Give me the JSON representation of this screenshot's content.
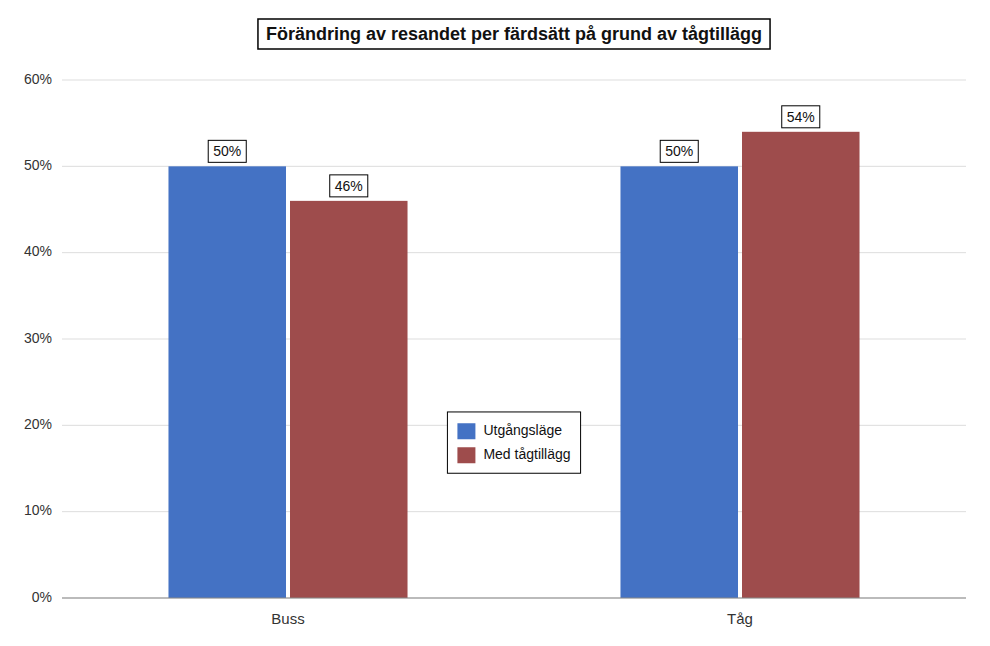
{
  "chart_data": {
    "type": "bar",
    "title": "Förändring av resandet per färdsätt på grund av tågtillägg",
    "categories": [
      "Buss",
      "Tåg"
    ],
    "series": [
      {
        "name": "Utgångsläge",
        "color": "#4472C4",
        "values": [
          0.5,
          0.5
        ],
        "value_labels": [
          "50%",
          "50%"
        ]
      },
      {
        "name": "Med tågtillägg",
        "color": "#9E4C4C",
        "values": [
          0.46,
          0.54
        ],
        "value_labels": [
          "46%",
          "54%"
        ]
      }
    ],
    "ylim": [
      0,
      0.6
    ],
    "yticks": [
      {
        "value": 0,
        "label": "0%"
      },
      {
        "value": 0.1,
        "label": "10%"
      },
      {
        "value": 0.2,
        "label": "20%"
      },
      {
        "value": 0.3,
        "label": "30%"
      },
      {
        "value": 0.4,
        "label": "40%"
      },
      {
        "value": 0.5,
        "label": "50%"
      },
      {
        "value": 0.6,
        "label": "60%"
      }
    ],
    "grid": true,
    "legend": "center",
    "data_labels": true
  }
}
